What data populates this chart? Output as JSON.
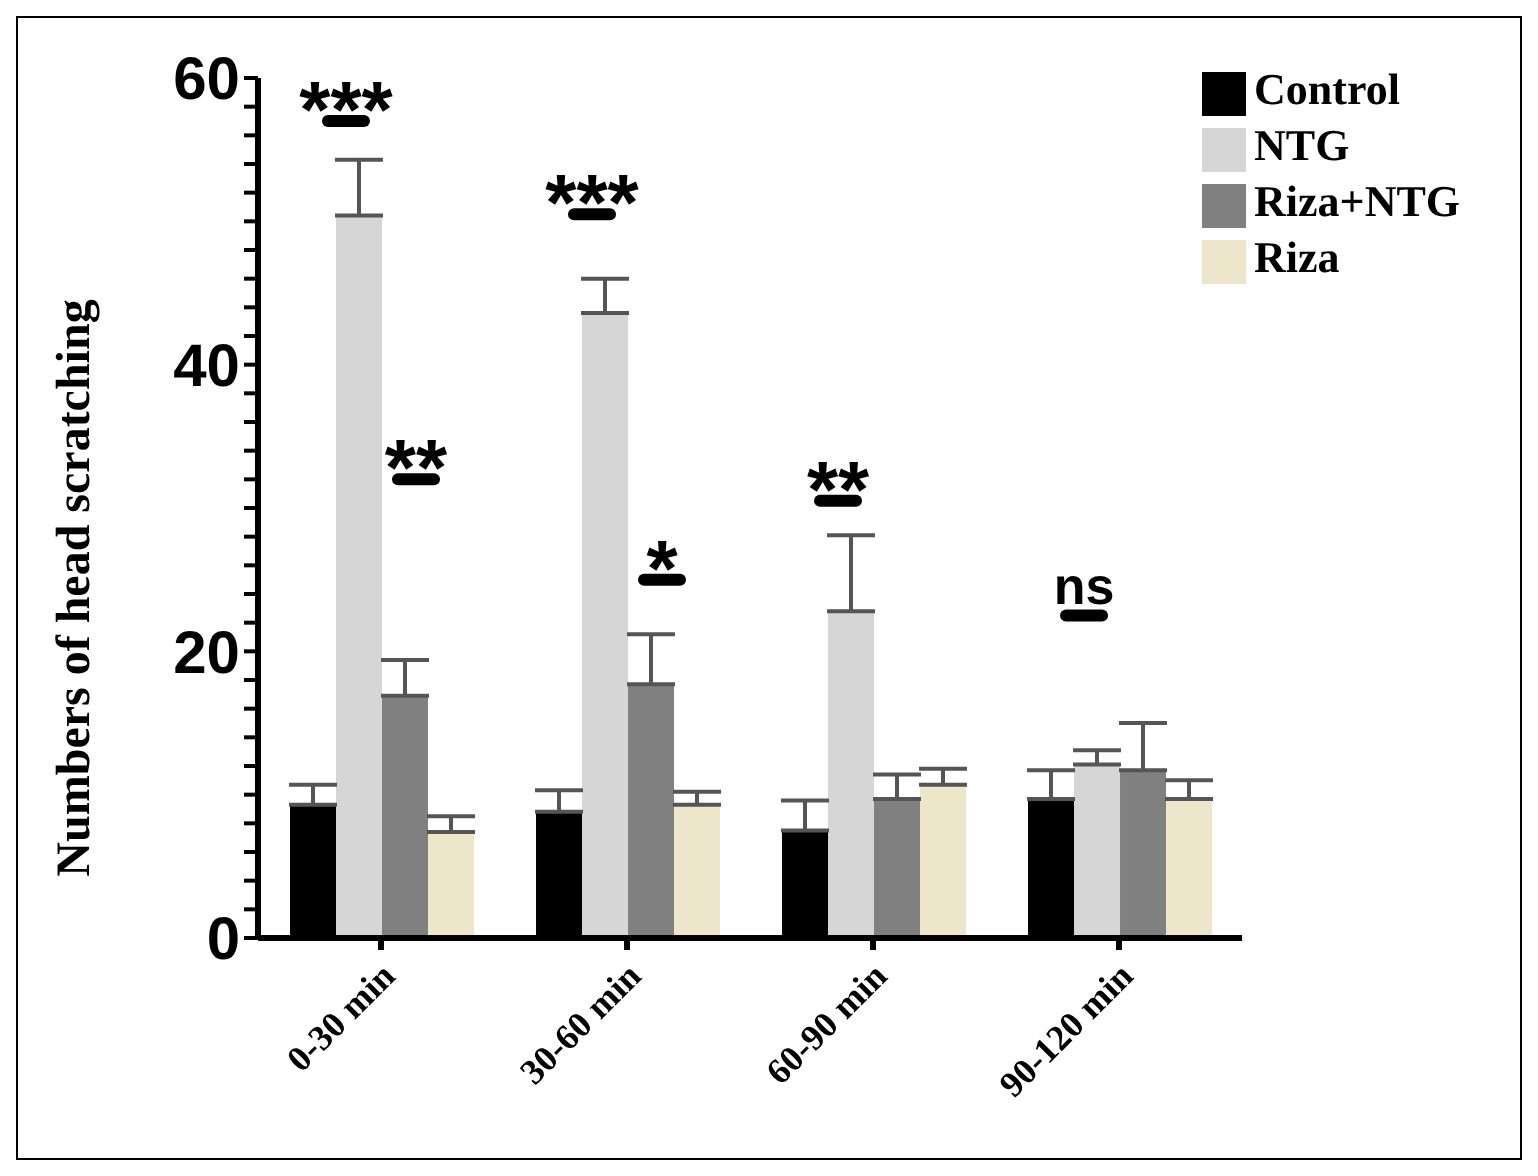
{
  "chart_data": {
    "type": "bar",
    "ylabel": "Numbers of head scratching",
    "categories": [
      "0-30 min",
      "30-60 min",
      "60-90 min",
      "90-120 min"
    ],
    "series": [
      {
        "name": "Control",
        "color": "#000000",
        "values": [
          9.3,
          8.8,
          7.5,
          9.7
        ],
        "errors": [
          [
            9.3,
            10.7
          ],
          [
            8.8,
            10.3
          ],
          [
            7.5,
            9.6
          ],
          [
            9.7,
            11.7
          ]
        ]
      },
      {
        "name": "NTG",
        "color": "#d6d6d6",
        "values": [
          50.4,
          43.6,
          22.8,
          12.1
        ],
        "errors": [
          [
            50.4,
            54.3
          ],
          [
            43.6,
            46.0
          ],
          [
            22.8,
            28.1
          ],
          [
            12.1,
            13.1
          ]
        ]
      },
      {
        "name": "Riza+NTG",
        "color": "#808080",
        "values": [
          16.9,
          17.7,
          9.7,
          11.7
        ],
        "errors": [
          [
            16.9,
            19.4
          ],
          [
            17.7,
            21.2
          ],
          [
            9.7,
            11.4
          ],
          [
            11.7,
            15.0
          ]
        ]
      },
      {
        "name": "Riza",
        "color": "#ede6cb",
        "values": [
          7.4,
          9.3,
          10.7,
          9.7
        ],
        "errors": [
          [
            7.4,
            8.5
          ],
          [
            9.3,
            10.2
          ],
          [
            10.7,
            11.8
          ],
          [
            9.7,
            11.0
          ]
        ]
      }
    ],
    "ylim": [
      0,
      60
    ],
    "yticks": [
      0,
      {
        "value": 2,
        "label": null
      },
      {
        "value": 4,
        "label": null
      },
      {
        "value": 6,
        "label": null
      },
      {
        "value": 8,
        "label": null
      },
      {
        "value": 10,
        "label": null
      },
      {
        "value": 12,
        "label": null
      },
      {
        "value": 14,
        "label": null
      },
      {
        "value": 16,
        "label": null
      },
      {
        "value": 18,
        "label": null
      },
      20,
      {
        "value": 22,
        "label": null
      },
      {
        "value": 24,
        "label": null
      },
      {
        "value": 26,
        "label": null
      },
      {
        "value": 28,
        "label": null
      },
      {
        "value": 30,
        "label": null
      },
      {
        "value": 32,
        "label": null
      },
      {
        "value": 34,
        "label": null
      },
      {
        "value": 36,
        "label": null
      },
      {
        "value": 38,
        "label": null
      },
      40,
      {
        "value": 42,
        "label": null
      },
      {
        "value": 44,
        "label": null
      },
      {
        "value": 46,
        "label": null
      },
      {
        "value": 48,
        "label": null
      },
      {
        "value": 50,
        "label": null
      },
      {
        "value": 52,
        "label": null
      },
      {
        "value": 54,
        "label": null
      },
      {
        "value": 56,
        "label": null
      },
      {
        "value": 58,
        "label": null
      },
      60
    ],
    "annotations": [
      "***",
      "**",
      "***",
      "*",
      "**",
      "ns"
    ],
    "legend": "top right",
    "grid": false
  }
}
